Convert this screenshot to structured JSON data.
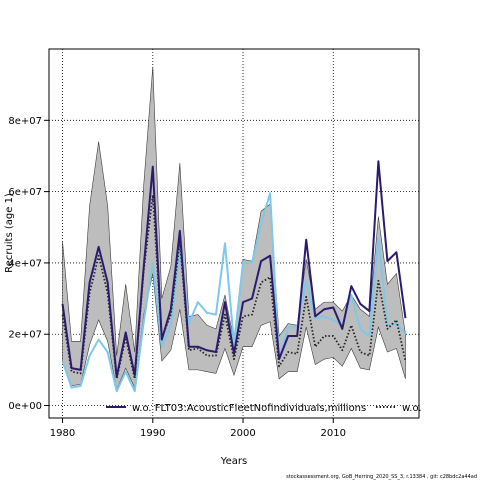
{
  "chart_data": {
    "type": "line",
    "title": "",
    "xlabel": "Years",
    "ylabel": "Recruits (age 1)",
    "xlim": [
      1978.5,
      2019.5
    ],
    "ylim": [
      -3500000,
      100000000
    ],
    "x_ticks": [
      1980,
      1990,
      2000,
      2010
    ],
    "x_tick_labels": [
      "1980",
      "1990",
      "2000",
      "2010"
    ],
    "y_ticks": [
      0,
      20000000,
      40000000,
      60000000,
      80000000
    ],
    "y_tick_labels": [
      "0e+00",
      "2e+07",
      "4e+07",
      "6e+07",
      "8e+07"
    ],
    "grid": true,
    "legend_position": "bottom",
    "x": [
      1980,
      1981,
      1982,
      1983,
      1984,
      1985,
      1986,
      1987,
      1988,
      1989,
      1990,
      1991,
      1992,
      1993,
      1994,
      1995,
      1996,
      1997,
      1998,
      1999,
      2000,
      2001,
      2002,
      2003,
      2004,
      2005,
      2006,
      2007,
      2008,
      2009,
      2010,
      2011,
      2012,
      2013,
      2014,
      2015,
      2016,
      2017,
      2018
    ],
    "band": {
      "upper": [
        46000000,
        18000000,
        18000000,
        56000000,
        74000000,
        56000000,
        14000000,
        34000000,
        15000000,
        62000000,
        95000000,
        30000000,
        39000000,
        68000000,
        25000000,
        25500000,
        22500000,
        21500000,
        31000000,
        18000000,
        41000000,
        40500000,
        54500000,
        56500000,
        19500000,
        23000000,
        22500000,
        41000000,
        27000000,
        29000000,
        29000000,
        26500000,
        31000000,
        27000000,
        25000000,
        53000000,
        34000000,
        37000000,
        20000000
      ],
      "lower": [
        12000000,
        5500000,
        6000000,
        17000000,
        24000000,
        18000000,
        4500000,
        10500000,
        5000000,
        25500000,
        37000000,
        12500000,
        15500000,
        27000000,
        10000000,
        10000000,
        9500000,
        9000000,
        16000000,
        8500000,
        16500000,
        16500000,
        22500000,
        23500000,
        7500000,
        9500000,
        9500000,
        22000000,
        11500000,
        13000000,
        13500000,
        11000000,
        16000000,
        10500000,
        10000000,
        22000000,
        15000000,
        16000000,
        7500000
      ]
    },
    "series": [
      {
        "name": "w.o. FLT03:AcousticFleetNofindividuals,millions",
        "color": "#2b1a6e",
        "style": "solid",
        "values": [
          28500000,
          10500000,
          10000000,
          34500000,
          44500000,
          34500000,
          8000000,
          20500000,
          8500000,
          39000000,
          67000000,
          18500000,
          27000000,
          49000000,
          16500000,
          16500000,
          15500000,
          15000000,
          29000000,
          14500000,
          29000000,
          30000000,
          40500000,
          42000000,
          13000000,
          19500000,
          19500000,
          46500000,
          25000000,
          27000000,
          27500000,
          21500000,
          33500000,
          28500000,
          26500000,
          68500000,
          40500000,
          43000000,
          24500000
        ]
      },
      {
        "name": "w.o.",
        "color": "#222222",
        "style": "dotted",
        "values": [
          25500000,
          9500000,
          9000000,
          31500000,
          42000000,
          31500000,
          7500000,
          19000000,
          7500000,
          38000000,
          59000000,
          19000000,
          25500000,
          46000000,
          15500000,
          16000000,
          14000000,
          14000000,
          25500000,
          13000000,
          25000000,
          25500000,
          34500000,
          36000000,
          11000000,
          15000000,
          14500000,
          30500000,
          16500000,
          19500000,
          19500000,
          15500000,
          22500000,
          15000000,
          14000000,
          35000000,
          21500000,
          24000000,
          12500000
        ]
      },
      {
        "name": "",
        "color": "#7ec8e8",
        "style": "solid",
        "values": [
          12500000,
          5000000,
          5500000,
          14000000,
          18500000,
          15000000,
          4000000,
          9500000,
          4000000,
          23500000,
          40000000,
          16500000,
          22500000,
          44000000,
          23000000,
          29000000,
          26000000,
          25500000,
          45500000,
          17500000,
          40000000,
          40000000,
          51000000,
          59500000,
          13000000,
          22000000,
          22000000,
          35000000,
          24500000,
          25000000,
          24000000,
          22500000,
          31000000,
          21500000,
          19500000,
          47000000,
          22500000,
          23000000,
          20000000
        ]
      }
    ],
    "footer": "stockassessment.org, GoB_Herring_2020_SS_3, r.13384 , git: c28bdc2a44ad"
  }
}
